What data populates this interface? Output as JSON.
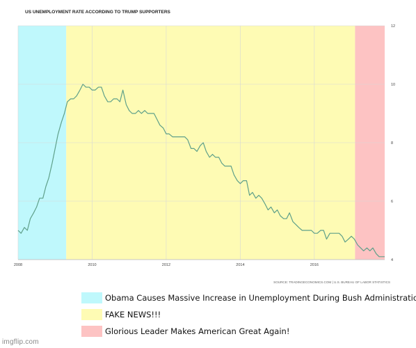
{
  "chart_data": {
    "type": "line",
    "title": "US UNEMPLOYMENT RATE ACCORDING TO TRUMP SUPPORTERS",
    "source": "SOURCE: TRADINGECONOMICS.COM | U.S. BUREAU OF LABOR STATISTICS",
    "xlim": [
      2008.0,
      2017.9
    ],
    "ylim": [
      4,
      12
    ],
    "x_ticks": [
      "2008",
      "2010",
      "2012",
      "2014",
      "2016"
    ],
    "y_ticks": [
      "12",
      "10",
      "8",
      "6",
      "4"
    ],
    "grid": true,
    "series": [
      {
        "color": "#5fa08a",
        "points": [
          [
            2008.0,
            5.0
          ],
          [
            2008.08,
            4.9
          ],
          [
            2008.17,
            5.1
          ],
          [
            2008.25,
            5.0
          ],
          [
            2008.33,
            5.4
          ],
          [
            2008.42,
            5.6
          ],
          [
            2008.5,
            5.8
          ],
          [
            2008.58,
            6.1
          ],
          [
            2008.67,
            6.1
          ],
          [
            2008.75,
            6.5
          ],
          [
            2008.83,
            6.8
          ],
          [
            2008.92,
            7.3
          ],
          [
            2009.0,
            7.8
          ],
          [
            2009.08,
            8.3
          ],
          [
            2009.17,
            8.7
          ],
          [
            2009.25,
            9.0
          ],
          [
            2009.33,
            9.4
          ],
          [
            2009.42,
            9.5
          ],
          [
            2009.5,
            9.5
          ],
          [
            2009.58,
            9.6
          ],
          [
            2009.67,
            9.8
          ],
          [
            2009.75,
            10.0
          ],
          [
            2009.83,
            9.9
          ],
          [
            2009.92,
            9.9
          ],
          [
            2010.0,
            9.8
          ],
          [
            2010.08,
            9.8
          ],
          [
            2010.17,
            9.9
          ],
          [
            2010.25,
            9.9
          ],
          [
            2010.33,
            9.6
          ],
          [
            2010.42,
            9.4
          ],
          [
            2010.5,
            9.4
          ],
          [
            2010.58,
            9.5
          ],
          [
            2010.67,
            9.5
          ],
          [
            2010.75,
            9.4
          ],
          [
            2010.83,
            9.8
          ],
          [
            2010.92,
            9.3
          ],
          [
            2011.0,
            9.1
          ],
          [
            2011.08,
            9.0
          ],
          [
            2011.17,
            9.0
          ],
          [
            2011.25,
            9.1
          ],
          [
            2011.33,
            9.0
          ],
          [
            2011.42,
            9.1
          ],
          [
            2011.5,
            9.0
          ],
          [
            2011.58,
            9.0
          ],
          [
            2011.67,
            9.0
          ],
          [
            2011.75,
            8.8
          ],
          [
            2011.83,
            8.6
          ],
          [
            2011.92,
            8.5
          ],
          [
            2012.0,
            8.3
          ],
          [
            2012.08,
            8.3
          ],
          [
            2012.17,
            8.2
          ],
          [
            2012.25,
            8.2
          ],
          [
            2012.33,
            8.2
          ],
          [
            2012.42,
            8.2
          ],
          [
            2012.5,
            8.2
          ],
          [
            2012.58,
            8.1
          ],
          [
            2012.67,
            7.8
          ],
          [
            2012.75,
            7.8
          ],
          [
            2012.83,
            7.7
          ],
          [
            2012.92,
            7.9
          ],
          [
            2013.0,
            8.0
          ],
          [
            2013.08,
            7.7
          ],
          [
            2013.17,
            7.5
          ],
          [
            2013.25,
            7.6
          ],
          [
            2013.33,
            7.5
          ],
          [
            2013.42,
            7.5
          ],
          [
            2013.5,
            7.3
          ],
          [
            2013.58,
            7.2
          ],
          [
            2013.67,
            7.2
          ],
          [
            2013.75,
            7.2
          ],
          [
            2013.83,
            6.9
          ],
          [
            2013.92,
            6.7
          ],
          [
            2014.0,
            6.6
          ],
          [
            2014.08,
            6.7
          ],
          [
            2014.17,
            6.7
          ],
          [
            2014.25,
            6.2
          ],
          [
            2014.33,
            6.3
          ],
          [
            2014.42,
            6.1
          ],
          [
            2014.5,
            6.2
          ],
          [
            2014.58,
            6.1
          ],
          [
            2014.67,
            5.9
          ],
          [
            2014.75,
            5.7
          ],
          [
            2014.83,
            5.8
          ],
          [
            2014.92,
            5.6
          ],
          [
            2015.0,
            5.7
          ],
          [
            2015.08,
            5.5
          ],
          [
            2015.17,
            5.4
          ],
          [
            2015.25,
            5.4
          ],
          [
            2015.33,
            5.6
          ],
          [
            2015.42,
            5.3
          ],
          [
            2015.5,
            5.2
          ],
          [
            2015.58,
            5.1
          ],
          [
            2015.67,
            5.0
          ],
          [
            2015.75,
            5.0
          ],
          [
            2015.83,
            5.0
          ],
          [
            2015.92,
            5.0
          ],
          [
            2016.0,
            4.9
          ],
          [
            2016.08,
            4.9
          ],
          [
            2016.17,
            5.0
          ],
          [
            2016.25,
            5.0
          ],
          [
            2016.33,
            4.7
          ],
          [
            2016.42,
            4.9
          ],
          [
            2016.5,
            4.9
          ],
          [
            2016.58,
            4.9
          ],
          [
            2016.67,
            4.9
          ],
          [
            2016.75,
            4.8
          ],
          [
            2016.83,
            4.6
          ],
          [
            2016.92,
            4.7
          ],
          [
            2017.0,
            4.8
          ],
          [
            2017.08,
            4.7
          ],
          [
            2017.17,
            4.5
          ],
          [
            2017.25,
            4.4
          ],
          [
            2017.33,
            4.3
          ],
          [
            2017.42,
            4.4
          ],
          [
            2017.5,
            4.3
          ],
          [
            2017.58,
            4.4
          ],
          [
            2017.67,
            4.2
          ],
          [
            2017.75,
            4.1
          ],
          [
            2017.83,
            4.1
          ],
          [
            2017.9,
            4.1
          ]
        ]
      }
    ],
    "regions": [
      {
        "from": 2008.0,
        "to": 2009.3,
        "color": "#bff8fc"
      },
      {
        "from": 2009.3,
        "to": 2017.1,
        "color": "#fefbb4"
      },
      {
        "from": 2017.1,
        "to": 2017.9,
        "color": "#fdc3c3"
      }
    ]
  },
  "legend": [
    {
      "label": "Obama Causes Massive Increase in Unemployment During Bush Administration",
      "color": "#bff8fc"
    },
    {
      "label": "FAKE NEWS!!!",
      "color": "#fefbb4"
    },
    {
      "label": "Glorious Leader Makes American Great Again!",
      "color": "#fdc3c3"
    }
  ],
  "watermark": "imgflip.com"
}
